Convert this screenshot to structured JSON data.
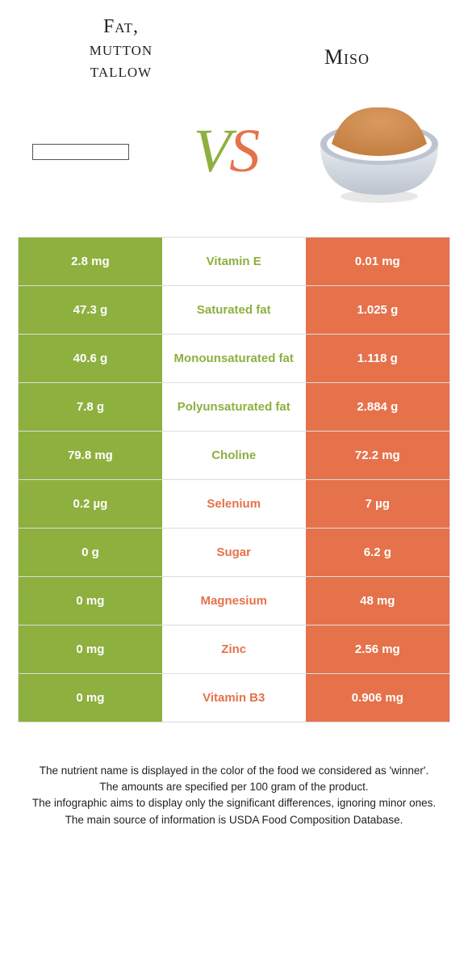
{
  "colors": {
    "green": "#8eb03f",
    "orange": "#e5724b",
    "bowl_rim": "#bcc4cf",
    "bowl_body": "#e8ecf1",
    "miso_top": "#d99a5f",
    "miso_bot": "#c47f42"
  },
  "header": {
    "left_line1": "Fat,",
    "left_line2": "mutton",
    "left_line3": "tallow",
    "right": "Miso",
    "vs_v": "V",
    "vs_s": "S"
  },
  "rows": [
    {
      "left": "2.8 mg",
      "mid": "Vitamin E",
      "right": "0.01 mg",
      "winner": "left"
    },
    {
      "left": "47.3 g",
      "mid": "Saturated fat",
      "right": "1.025 g",
      "winner": "left"
    },
    {
      "left": "40.6 g",
      "mid": "Monounsaturated fat",
      "right": "1.118 g",
      "winner": "left"
    },
    {
      "left": "7.8 g",
      "mid": "Polyunsaturated fat",
      "right": "2.884 g",
      "winner": "left"
    },
    {
      "left": "79.8 mg",
      "mid": "Choline",
      "right": "72.2 mg",
      "winner": "left"
    },
    {
      "left": "0.2 µg",
      "mid": "Selenium",
      "right": "7 µg",
      "winner": "right"
    },
    {
      "left": "0 g",
      "mid": "Sugar",
      "right": "6.2 g",
      "winner": "right"
    },
    {
      "left": "0 mg",
      "mid": "Magnesium",
      "right": "48 mg",
      "winner": "right"
    },
    {
      "left": "0 mg",
      "mid": "Zinc",
      "right": "2.56 mg",
      "winner": "right"
    },
    {
      "left": "0 mg",
      "mid": "Vitamin B3",
      "right": "0.906 mg",
      "winner": "right"
    }
  ],
  "footer": {
    "l1": "The nutrient name is displayed in the color of the food we considered as 'winner'.",
    "l2": "The amounts are specified per 100 gram of the product.",
    "l3": "The infographic aims to display only the significant differences, ignoring minor ones.",
    "l4": "The main source of information is USDA Food Composition Database."
  }
}
